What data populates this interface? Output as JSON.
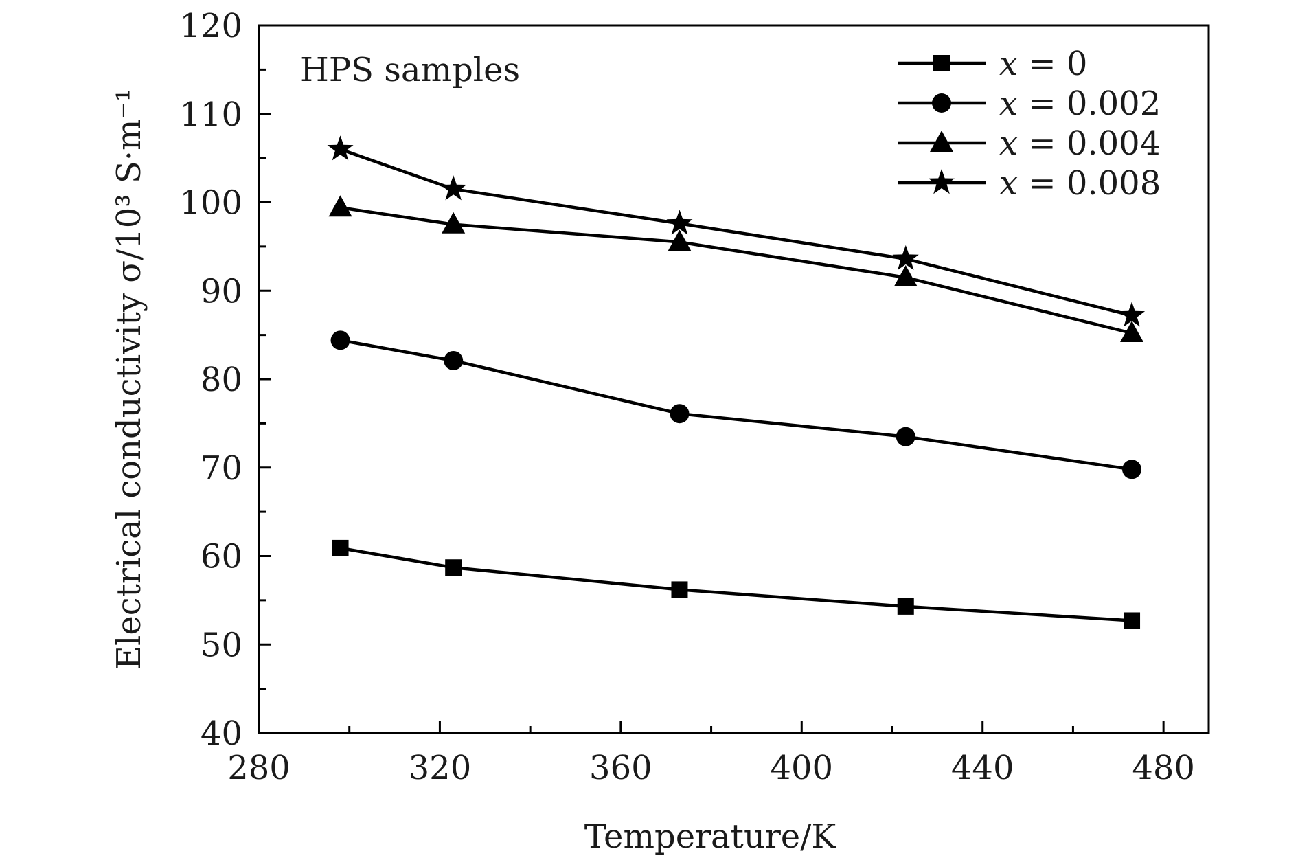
{
  "chart_data": {
    "type": "line",
    "annotation": "HPS samples",
    "xlabel": "Temperature/K",
    "ylabel": "Electrical conductivity σ/10³ S·m⁻¹",
    "xlim": [
      280,
      490
    ],
    "ylim": [
      40,
      120
    ],
    "xticks": [
      280,
      320,
      360,
      400,
      440,
      480
    ],
    "yticks": [
      40,
      50,
      60,
      70,
      80,
      90,
      100,
      110,
      120
    ],
    "grid": false,
    "legend_position": "top-right",
    "x": [
      298,
      323,
      373,
      423,
      473
    ],
    "series": [
      {
        "name": "x = 0",
        "legend_var": "x",
        "legend_rest": " = 0",
        "marker": "square",
        "values": [
          60.9,
          58.7,
          56.2,
          54.3,
          52.7
        ]
      },
      {
        "name": "x = 0.002",
        "legend_var": "x",
        "legend_rest": " = 0.002",
        "marker": "circle",
        "values": [
          84.4,
          82.1,
          76.1,
          73.5,
          69.8
        ]
      },
      {
        "name": "x = 0.004",
        "legend_var": "x",
        "legend_rest": " = 0.004",
        "marker": "triangle",
        "values": [
          99.4,
          97.5,
          95.5,
          91.5,
          85.2
        ]
      },
      {
        "name": "x = 0.008",
        "legend_var": "x",
        "legend_rest": " = 0.008",
        "marker": "star",
        "values": [
          106.0,
          101.5,
          97.6,
          93.6,
          87.2
        ]
      }
    ],
    "color": "#000000"
  }
}
